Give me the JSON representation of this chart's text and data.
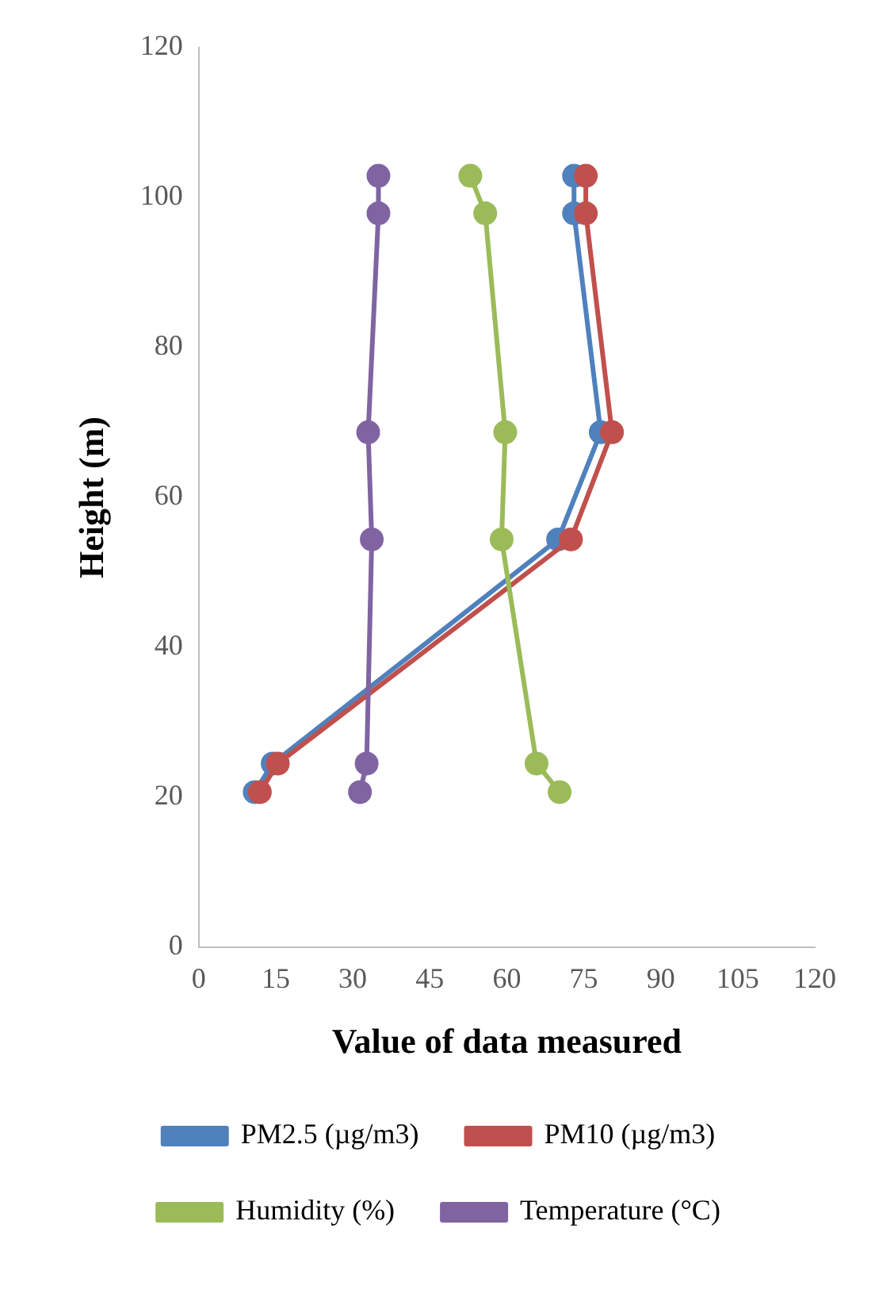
{
  "chart_data": {
    "type": "line",
    "xlabel": "Value of data measured",
    "ylabel": "Height (m)",
    "xlim": [
      0,
      120
    ],
    "xticks": [
      0,
      15,
      30,
      45,
      60,
      75,
      90,
      105,
      120
    ],
    "ylim": [
      0,
      120
    ],
    "yticks": [
      0,
      20,
      40,
      60,
      80,
      100,
      120
    ],
    "grid": false,
    "legend": "bottom",
    "marker": "circle",
    "line_style": "solid",
    "series": [
      {
        "name": "PM2.5 (µg/m3)",
        "color": "#4f81bd",
        "x": [
          73.1,
          73.1,
          78.3,
          70,
          14.4,
          10.9
        ],
        "values": [
          102.9,
          97.9,
          68.7,
          54.4,
          24.5,
          20.7
        ]
      },
      {
        "name": "PM10 (µg/m3)",
        "color": "#c0504d",
        "x": [
          75.4,
          75.4,
          80.5,
          72.5,
          15.4,
          11.9
        ],
        "values": [
          102.9,
          97.9,
          68.7,
          54.4,
          24.5,
          20.7
        ]
      },
      {
        "name": "Humidity (%)",
        "color": "#9bbb59",
        "x": [
          52.9,
          55.8,
          59.7,
          59,
          65.8,
          70.3
        ],
        "values": [
          102.9,
          97.9,
          68.7,
          54.4,
          24.5,
          20.7
        ]
      },
      {
        "name": "Temperature (°C)",
        "color": "#8064a2",
        "x": [
          35,
          35,
          33,
          33.7,
          32.7,
          31.4
        ],
        "values": [
          102.9,
          97.9,
          68.7,
          54.4,
          24.5,
          20.7
        ]
      }
    ]
  }
}
